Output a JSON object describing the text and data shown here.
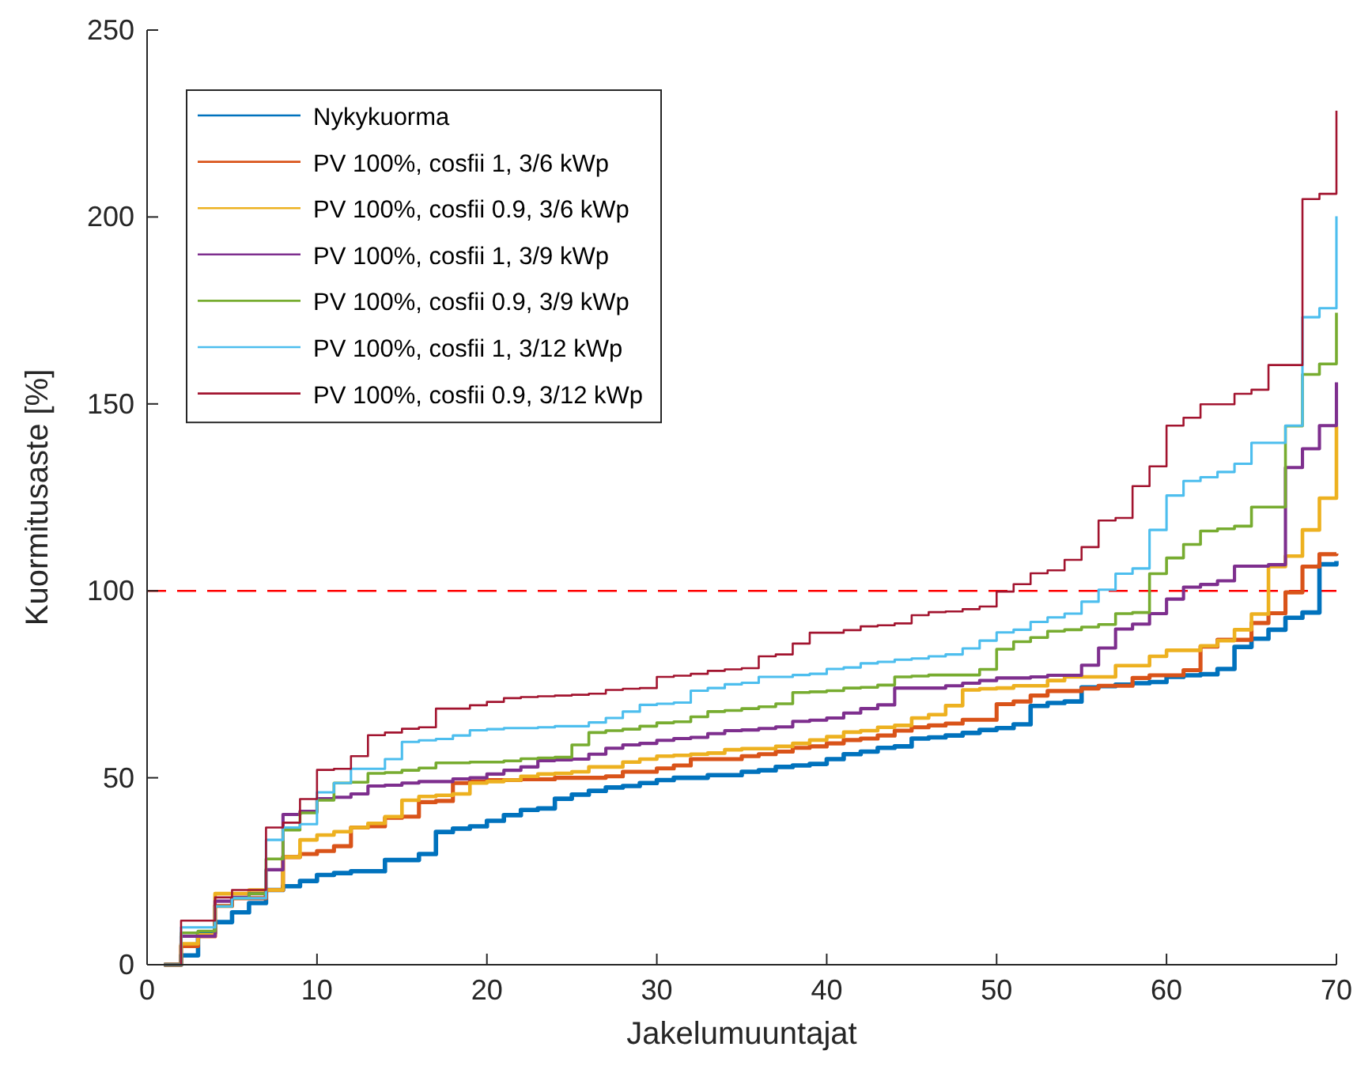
{
  "chart_data": {
    "type": "step",
    "xlabel": "Jakelumuuntajat",
    "ylabel": "Kuormitusaste [%]",
    "x": [
      1,
      2,
      3,
      4,
      5,
      6,
      7,
      8,
      9,
      10,
      11,
      12,
      13,
      14,
      15,
      16,
      17,
      18,
      19,
      20,
      21,
      22,
      23,
      24,
      25,
      26,
      27,
      28,
      29,
      30,
      31,
      32,
      33,
      34,
      35,
      36,
      37,
      38,
      39,
      40,
      41,
      42,
      43,
      44,
      45,
      46,
      47,
      48,
      49,
      50,
      51,
      52,
      53,
      54,
      55,
      56,
      57,
      58,
      59,
      60,
      61,
      62,
      63,
      64,
      65,
      66,
      67,
      68,
      69,
      70
    ],
    "xlim": [
      0,
      70
    ],
    "xticks": [
      0,
      10,
      20,
      30,
      40,
      50,
      60,
      70
    ],
    "ylim": [
      0,
      250
    ],
    "yticks": [
      0,
      50,
      100,
      150,
      200,
      250
    ],
    "legend": "top left",
    "grid": false,
    "line_style": "solid",
    "marker": "none",
    "ref_lines": [
      {
        "axis": "y",
        "value": 100,
        "color": "#ff0000",
        "line_style": "dashed"
      }
    ],
    "series": [
      {
        "name": "Nykykuorma",
        "color": "#0072bd",
        "values": [
          0,
          2.5,
          8.5,
          11.4,
          14,
          16.5,
          20,
          21,
          22.4,
          24,
          24.5,
          25,
          25,
          28,
          28,
          29.6,
          35.5,
          36.4,
          37,
          38.5,
          40,
          41.4,
          41.8,
          44.4,
          45.5,
          46.5,
          47.4,
          47.8,
          48.6,
          49.4,
          50,
          50,
          50.7,
          50.7,
          51.6,
          52,
          52.9,
          53.3,
          53.7,
          55,
          56.3,
          57,
          58,
          58.4,
          60.5,
          60.8,
          61.3,
          62,
          62.8,
          63.3,
          64.3,
          69.2,
          70,
          70.4,
          74.2,
          74.5,
          74.9,
          75.3,
          75.6,
          77,
          77.4,
          77.7,
          79.1,
          85,
          87.2,
          89.6,
          92.8,
          94.2,
          107.1,
          108
        ]
      },
      {
        "name": "PV 100%, cosfii 1, 3/6 kWp",
        "color": "#d95319",
        "values": [
          0,
          5,
          7.6,
          15.7,
          17.8,
          17.8,
          20,
          28.8,
          29.6,
          30.4,
          31.7,
          36.7,
          37,
          39.3,
          39.6,
          43.5,
          43.8,
          48.6,
          49,
          49.4,
          49.4,
          49.6,
          49.6,
          50,
          50,
          50,
          50.4,
          51.6,
          51.6,
          52.5,
          53.3,
          55,
          55,
          55,
          55.8,
          56.3,
          57,
          58,
          58.4,
          59.2,
          60.1,
          60.5,
          61.3,
          62.6,
          63.5,
          64,
          64.5,
          65.5,
          65.5,
          69.7,
          70.4,
          72,
          73.2,
          73.2,
          73.9,
          74.6,
          74.6,
          76.7,
          77.4,
          77.4,
          78.8,
          85.1,
          86.9,
          86.9,
          91.4,
          94,
          99.6,
          106.5,
          109.8,
          110
        ]
      },
      {
        "name": "PV 100%, cosfii 0.9, 3/6 kWp",
        "color": "#edb120",
        "values": [
          0,
          5.6,
          8,
          19,
          19,
          20,
          20,
          28.8,
          33.4,
          34.7,
          35.6,
          36.7,
          37.8,
          39.6,
          44,
          45,
          45.3,
          45.7,
          48.6,
          49,
          49.4,
          50.4,
          51,
          51.2,
          51.6,
          52.9,
          52.9,
          54.2,
          55,
          55.8,
          56,
          56.3,
          56.6,
          57.5,
          57.8,
          57.8,
          58.4,
          59.2,
          60.1,
          61,
          62.2,
          62.6,
          63.5,
          64,
          66,
          66.9,
          69.3,
          73.5,
          73.8,
          74,
          74.6,
          74.6,
          76,
          77,
          77,
          77,
          80,
          80,
          82.5,
          84.1,
          84.1,
          85.3,
          86.7,
          89.6,
          93.8,
          106.5,
          109.3,
          116.3,
          124.8,
          144
        ]
      },
      {
        "name": "PV 100%, cosfii 1, 3/9 kWp",
        "color": "#7e2f8e",
        "values": [
          0,
          7.6,
          7.6,
          17,
          18,
          19,
          25.4,
          40.2,
          41,
          44.4,
          44.8,
          45.7,
          47.8,
          48,
          48.6,
          49,
          49,
          49.7,
          50,
          51,
          52,
          52.9,
          54.6,
          54.8,
          55,
          56.3,
          57.9,
          58.8,
          59.2,
          60,
          60.5,
          60.8,
          61.8,
          62.6,
          62.8,
          63.2,
          63.6,
          65.1,
          65.4,
          66,
          67.3,
          68.5,
          69.5,
          74,
          74,
          74,
          74.6,
          75.3,
          76,
          76.7,
          76.7,
          77,
          77.4,
          77.4,
          80.1,
          84.7,
          89.8,
          91.1,
          93.9,
          97.8,
          101,
          101.7,
          102.7,
          106.6,
          106.6,
          107,
          133,
          138,
          144.2,
          155.8
        ]
      },
      {
        "name": "PV 100%, cosfii 0.9, 3/9 kWp",
        "color": "#77ac30",
        "values": [
          0,
          8.5,
          9,
          15.6,
          17.8,
          19,
          28.3,
          36,
          40.6,
          44,
          48.6,
          48.8,
          51.2,
          51.4,
          52,
          52.6,
          54,
          54,
          54.2,
          54.2,
          54.5,
          55.1,
          55.3,
          55.5,
          58.8,
          62.1,
          62.6,
          63,
          63.8,
          64.7,
          65,
          66.3,
          67.7,
          68,
          68.5,
          69,
          69.8,
          72.8,
          73,
          73.3,
          74,
          74.2,
          74.8,
          77,
          77.2,
          77.5,
          77.5,
          77.5,
          79,
          84.4,
          86.4,
          87.5,
          89.2,
          89.6,
          90.3,
          91,
          93.9,
          94.2,
          104.6,
          108.8,
          112.4,
          116,
          116.6,
          117.3,
          122.4,
          122.4,
          144.1,
          157.9,
          160.7,
          174.4
        ]
      },
      {
        "name": "PV 100%, cosfii 1, 3/12 kWp",
        "color": "#4dbeee",
        "values": [
          0,
          10,
          10,
          15.6,
          17.8,
          17.8,
          33.4,
          36.7,
          37.6,
          46.1,
          48.6,
          52.4,
          52.4,
          55,
          59.6,
          60,
          60.4,
          61.3,
          62.7,
          63,
          63.3,
          63.3,
          63.5,
          63.8,
          63.8,
          64.8,
          66,
          67.7,
          69.5,
          69.8,
          70.1,
          73.3,
          74,
          75,
          75.4,
          77,
          77,
          77.5,
          77.8,
          79.1,
          79.5,
          80.6,
          81,
          81.6,
          81.9,
          82.5,
          83,
          84.6,
          86.7,
          88.9,
          89.6,
          91.7,
          92.9,
          93.9,
          97.1,
          100.3,
          104.6,
          106,
          116.3,
          125.5,
          129.4,
          130.4,
          131.8,
          134,
          139.6,
          139.6,
          144.2,
          173.2,
          175.6,
          200.2
        ]
      },
      {
        "name": "PV 100%, cosfii 0.9, 3/12 kWp",
        "color": "#a2142f",
        "values": [
          0,
          11.8,
          11.8,
          18,
          20,
          20,
          36.7,
          38,
          44.3,
          52.1,
          52.4,
          55.8,
          61.4,
          62.1,
          63.1,
          63.5,
          68.5,
          68.5,
          69.4,
          70.3,
          71.3,
          71.6,
          71.8,
          72,
          72.2,
          72.5,
          73.5,
          73.8,
          74,
          77,
          77.3,
          77.8,
          78.6,
          79,
          79.3,
          82.5,
          83,
          85.9,
          88.8,
          88.8,
          89.5,
          90.5,
          90.8,
          91.3,
          93.5,
          94.3,
          94.5,
          95.1,
          95.8,
          99.8,
          101.8,
          104.7,
          105.5,
          108.3,
          111.7,
          118.8,
          119.5,
          128,
          133.3,
          144.2,
          146.3,
          149.9,
          149.9,
          152.7,
          153.8,
          160.4,
          160.4,
          204.8,
          206.2,
          228.4
        ]
      }
    ]
  }
}
